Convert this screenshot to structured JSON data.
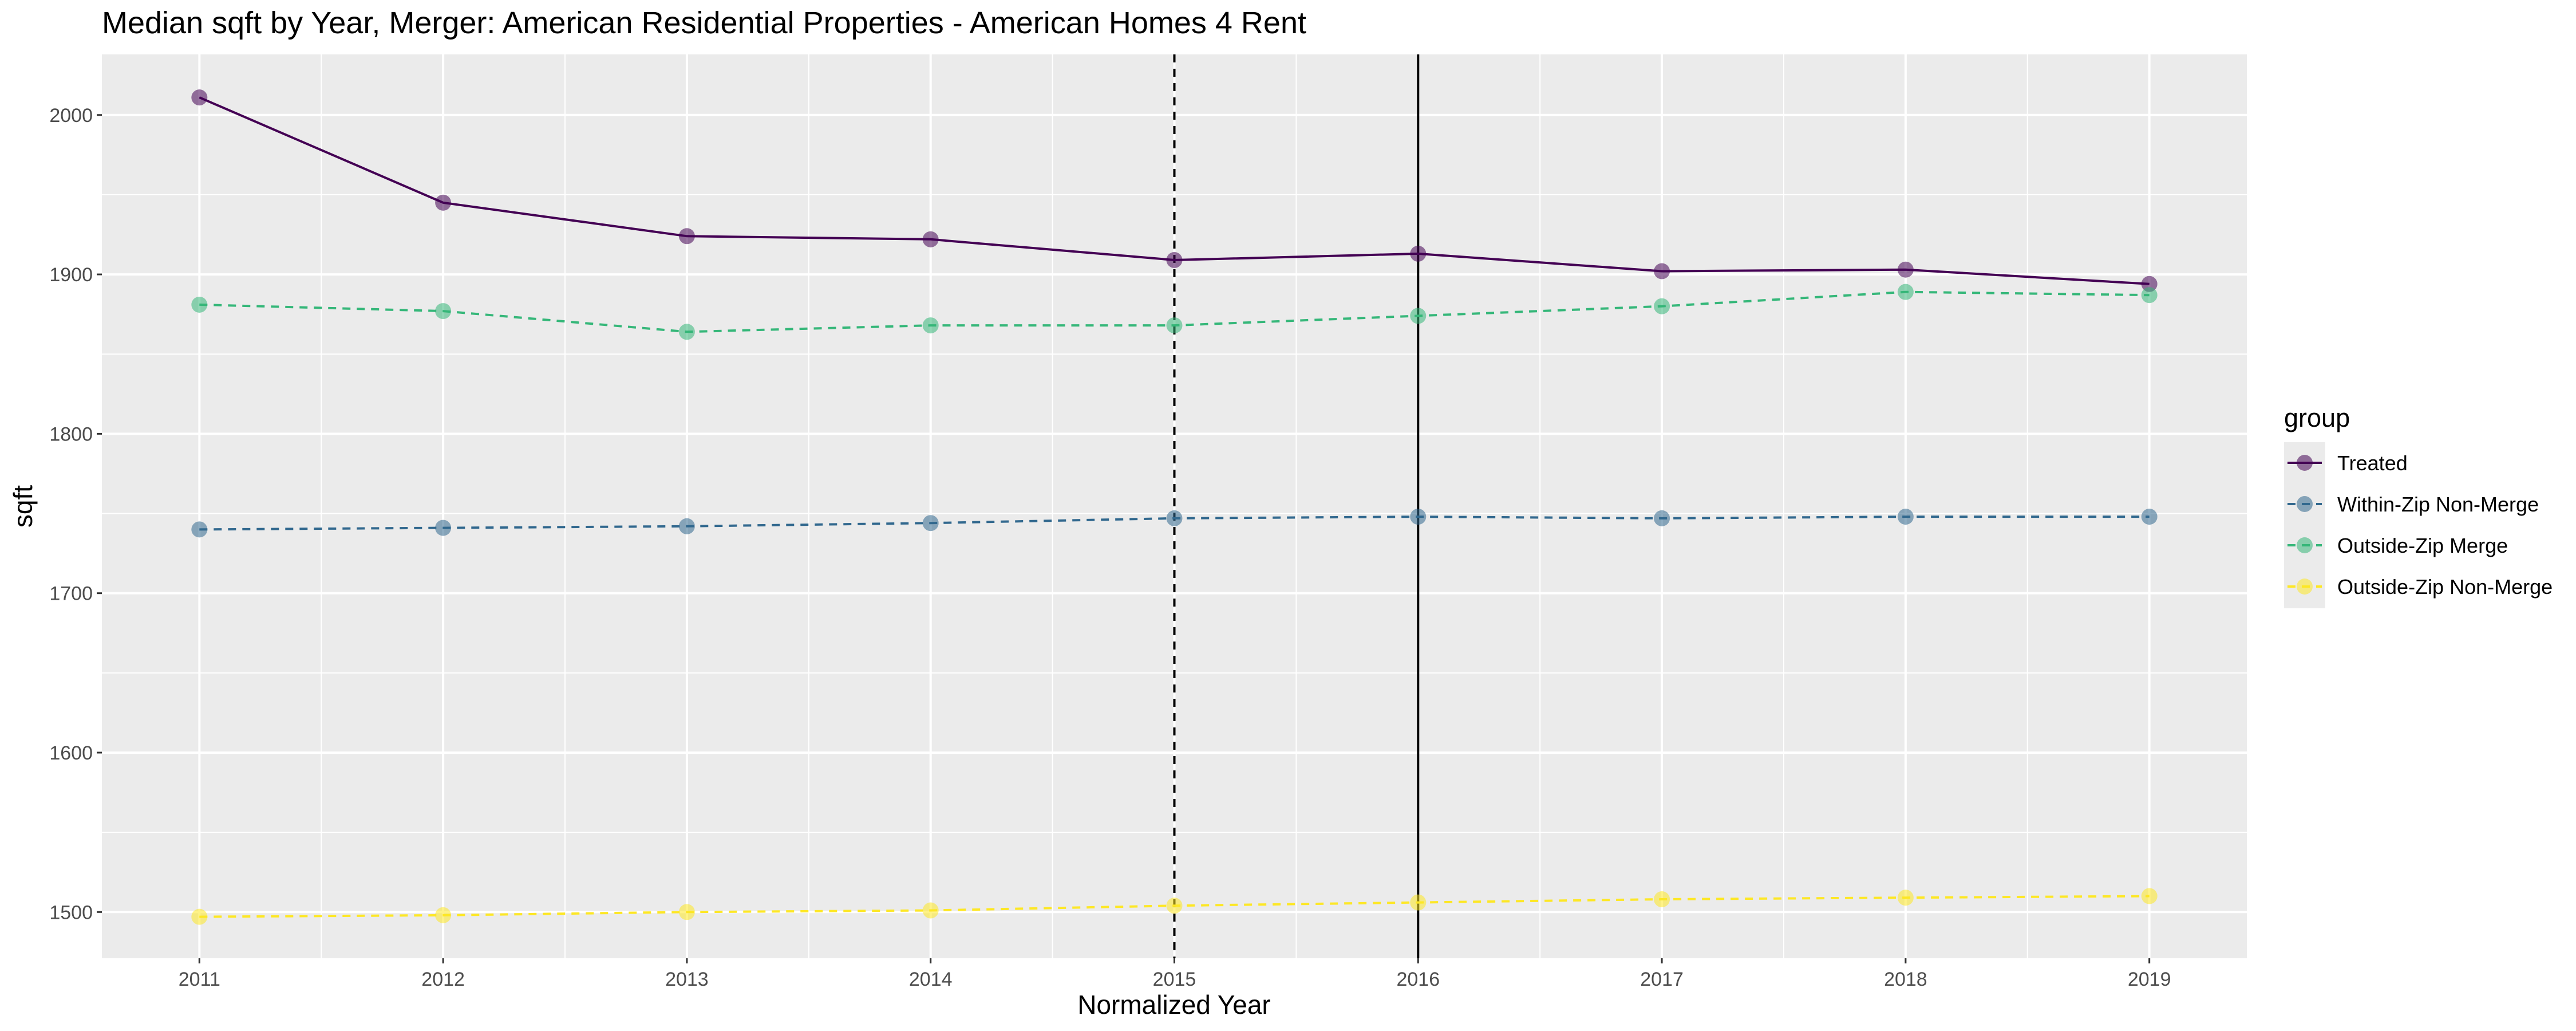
{
  "chart_data": {
    "type": "line",
    "title": "Median sqft by Year, Merger: American Residential Properties - American Homes 4 Rent",
    "xlabel": "Normalized Year",
    "ylabel": "sqft",
    "x": [
      2011,
      2012,
      2013,
      2014,
      2015,
      2016,
      2017,
      2018,
      2019
    ],
    "xlim": [
      2010.6,
      2019.4
    ],
    "ylim": [
      1471,
      2038
    ],
    "yticks": [
      1500,
      1600,
      1700,
      1800,
      1900,
      2000
    ],
    "grid": true,
    "reference_lines": [
      {
        "x": 2015,
        "style": "dashed",
        "color": "#000000"
      },
      {
        "x": 2016,
        "style": "solid",
        "color": "#000000"
      }
    ],
    "legend": {
      "title": "group",
      "position": "right"
    },
    "series": [
      {
        "name": "Treated",
        "color": "#440154",
        "linestyle": "solid",
        "values": [
          2011,
          1945,
          1924,
          1922,
          1909,
          1913,
          1902,
          1903,
          1894
        ]
      },
      {
        "name": "Within-Zip Non-Merge",
        "color": "#31688e",
        "linestyle": "dashed",
        "values": [
          1740,
          1741,
          1742,
          1744,
          1747,
          1748,
          1747,
          1748,
          1748
        ]
      },
      {
        "name": "Outside-Zip Merge",
        "color": "#35b779",
        "linestyle": "dashed",
        "values": [
          1881,
          1877,
          1864,
          1868,
          1868,
          1874,
          1880,
          1889,
          1887
        ]
      },
      {
        "name": "Outside-Zip Non-Merge",
        "color": "#fde725",
        "linestyle": "dashed",
        "values": [
          1497,
          1498,
          1500,
          1501,
          1504,
          1506,
          1508,
          1509,
          1510
        ]
      }
    ]
  }
}
